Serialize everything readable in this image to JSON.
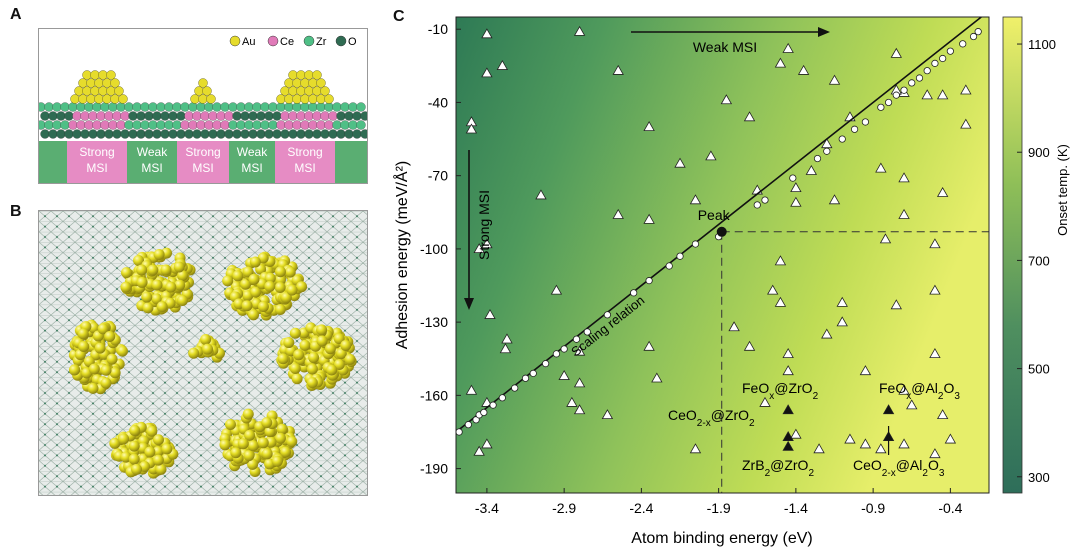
{
  "panels": {
    "a": "A",
    "b": "B",
    "c": "C"
  },
  "panelA": {
    "legend": [
      {
        "label": "Au",
        "color": "#e6dc2c"
      },
      {
        "label": "Ce",
        "color": "#e07ab8"
      },
      {
        "label": "Zr",
        "color": "#4fbf86"
      },
      {
        "label": "O",
        "color": "#2f6b52"
      }
    ],
    "regions": [
      {
        "line1": "Strong",
        "line2": "MSI",
        "type": "strong"
      },
      {
        "line1": "Weak",
        "line2": "MSI",
        "type": "weak"
      },
      {
        "line1": "Strong",
        "line2": "MSI",
        "type": "strong"
      },
      {
        "line1": "Weak",
        "line2": "MSI",
        "type": "weak"
      },
      {
        "line1": "Strong",
        "line2": "MSI",
        "type": "strong"
      }
    ],
    "colors": {
      "strong": "#e68cc4",
      "weak": "#5aae72"
    }
  },
  "chart_data": {
    "type": "scatter",
    "xlabel": "Atom binding energy (eV)",
    "ylabel": "Adhesion energy (meV/Å²)",
    "xlim": [
      -3.6,
      -0.15
    ],
    "ylim": [
      -200,
      -5
    ],
    "xticks": [
      -3.4,
      -2.9,
      -2.4,
      -1.9,
      -1.4,
      -0.9,
      -0.4
    ],
    "yticks": [
      -10,
      -40,
      -70,
      -100,
      -130,
      -160,
      -190
    ],
    "colorbar": {
      "label": "Onset temp. (K)",
      "ticks": [
        300,
        500,
        700,
        900,
        1100
      ],
      "range": [
        270,
        1150
      ]
    },
    "scaling_line": {
      "x": [
        -3.6,
        -0.2
      ],
      "y": [
        -175,
        -5
      ],
      "label": "Scaling relation"
    },
    "peak": {
      "x": -1.88,
      "y": -93,
      "label": "Peak"
    },
    "scaling_points": [
      [
        -3.58,
        -175
      ],
      [
        -3.52,
        -172
      ],
      [
        -3.47,
        -170
      ],
      [
        -3.45,
        -168
      ],
      [
        -3.42,
        -167
      ],
      [
        -3.36,
        -164
      ],
      [
        -3.3,
        -161
      ],
      [
        -3.22,
        -157
      ],
      [
        -3.15,
        -153
      ],
      [
        -3.1,
        -151
      ],
      [
        -3.02,
        -147
      ],
      [
        -2.95,
        -143
      ],
      [
        -2.9,
        -141
      ],
      [
        -2.82,
        -137
      ],
      [
        -2.75,
        -134
      ],
      [
        -2.62,
        -127
      ],
      [
        -2.45,
        -118
      ],
      [
        -2.35,
        -113
      ],
      [
        -2.22,
        -107
      ],
      [
        -2.15,
        -103
      ],
      [
        -2.05,
        -98
      ],
      [
        -1.9,
        -95
      ],
      [
        -1.65,
        -82
      ],
      [
        -1.6,
        -80
      ],
      [
        -1.42,
        -71
      ],
      [
        -1.26,
        -63
      ],
      [
        -1.2,
        -60
      ],
      [
        -1.1,
        -55
      ],
      [
        -1.02,
        -51
      ],
      [
        -0.95,
        -48
      ],
      [
        -0.85,
        -42
      ],
      [
        -0.8,
        -40
      ],
      [
        -0.75,
        -37
      ],
      [
        -0.7,
        -35
      ],
      [
        -0.65,
        -32
      ],
      [
        -0.6,
        -30
      ],
      [
        -0.55,
        -27
      ],
      [
        -0.5,
        -24
      ],
      [
        -0.45,
        -22
      ],
      [
        -0.4,
        -19
      ],
      [
        -0.32,
        -16
      ],
      [
        -0.25,
        -13
      ],
      [
        -0.22,
        -11
      ]
    ],
    "other_points": [
      [
        -3.4,
        -12
      ],
      [
        -3.3,
        -25
      ],
      [
        -3.4,
        -28
      ],
      [
        -2.8,
        -11
      ],
      [
        -2.55,
        -27
      ],
      [
        -1.5,
        -24
      ],
      [
        -1.45,
        -18
      ],
      [
        -1.35,
        -27
      ],
      [
        -1.15,
        -31
      ],
      [
        -0.75,
        -20
      ],
      [
        -0.55,
        -37
      ],
      [
        -0.45,
        -37
      ],
      [
        -0.3,
        -49
      ],
      [
        -0.7,
        -36
      ],
      [
        -0.3,
        -35
      ],
      [
        -3.5,
        -48
      ],
      [
        -3.5,
        -51
      ],
      [
        -2.35,
        -50
      ],
      [
        -2.05,
        -80
      ],
      [
        -1.95,
        -62
      ],
      [
        -1.85,
        -39
      ],
      [
        -1.7,
        -46
      ],
      [
        -1.2,
        -57
      ],
      [
        -1.05,
        -46
      ],
      [
        -0.75,
        -35
      ],
      [
        -2.15,
        -65
      ],
      [
        -1.4,
        -75
      ],
      [
        -1.3,
        -68
      ],
      [
        -0.85,
        -67
      ],
      [
        -0.7,
        -71
      ],
      [
        -0.45,
        -77
      ],
      [
        -3.05,
        -78
      ],
      [
        -2.55,
        -86
      ],
      [
        -2.35,
        -88
      ],
      [
        -1.65,
        -76
      ],
      [
        -0.7,
        -86
      ],
      [
        -1.4,
        -81
      ],
      [
        -1.15,
        -80
      ],
      [
        -0.5,
        -98
      ],
      [
        -0.82,
        -96
      ],
      [
        -3.4,
        -98
      ],
      [
        -3.45,
        -100
      ],
      [
        -2.95,
        -117
      ],
      [
        -3.38,
        -127
      ],
      [
        -3.27,
        -137
      ],
      [
        -3.28,
        -141
      ],
      [
        -3.5,
        -158
      ],
      [
        -3.4,
        -163
      ],
      [
        -3.45,
        -183
      ],
      [
        -3.4,
        -180
      ],
      [
        -2.9,
        -152
      ],
      [
        -2.85,
        -163
      ],
      [
        -2.8,
        -142
      ],
      [
        -2.8,
        -155
      ],
      [
        -2.8,
        -166
      ],
      [
        -2.62,
        -168
      ],
      [
        -2.35,
        -140
      ],
      [
        -2.3,
        -153
      ],
      [
        -2.05,
        -182
      ],
      [
        -1.5,
        -105
      ],
      [
        -1.5,
        -122
      ],
      [
        -1.55,
        -117
      ],
      [
        -1.8,
        -132
      ],
      [
        -1.7,
        -140
      ],
      [
        -1.6,
        -163
      ],
      [
        -1.45,
        -143
      ],
      [
        -1.45,
        -150
      ],
      [
        -1.4,
        -176
      ],
      [
        -1.25,
        -182
      ],
      [
        -1.05,
        -178
      ],
      [
        -0.95,
        -180
      ],
      [
        -1.1,
        -130
      ],
      [
        -0.95,
        -150
      ],
      [
        -0.75,
        -123
      ],
      [
        -0.7,
        -158
      ],
      [
        -0.65,
        -164
      ],
      [
        -0.5,
        -143
      ],
      [
        -0.5,
        -117
      ],
      [
        -0.45,
        -168
      ],
      [
        -0.4,
        -178
      ],
      [
        -0.7,
        -180
      ],
      [
        -0.85,
        -182
      ],
      [
        -0.5,
        -184
      ],
      [
        -1.1,
        -122
      ],
      [
        -1.2,
        -135
      ]
    ],
    "highlight_points": [
      [
        -1.45,
        -166
      ],
      [
        -1.45,
        -177
      ],
      [
        -1.45,
        -181
      ],
      [
        -0.8,
        -166
      ],
      [
        -0.8,
        -177
      ]
    ],
    "annotations": {
      "weak_msi": "Weak MSI",
      "strong_msi": "Strong MSI",
      "feox_zro2": {
        "pre": "FeO",
        "s1": "x",
        "mid": "@ZrO",
        "s2": "2"
      },
      "feox_al2o3": {
        "pre": "FeO",
        "s1": "x",
        "mid": "@Al",
        "s2": "2",
        "mid2": "O",
        "s3": "3"
      },
      "ceo_zro2": {
        "pre": "CeO",
        "s1": "2-x",
        "mid": "@ZrO",
        "s2": "2"
      },
      "zrb_zro2": {
        "pre": "ZrB",
        "s1": "2",
        "mid": "@ZrO",
        "s2": "2"
      },
      "ceo_al2o3": {
        "pre": "CeO",
        "s1": "2-x",
        "mid": "@Al",
        "s2": "2",
        "mid2": "O",
        "s3": "3"
      }
    }
  }
}
